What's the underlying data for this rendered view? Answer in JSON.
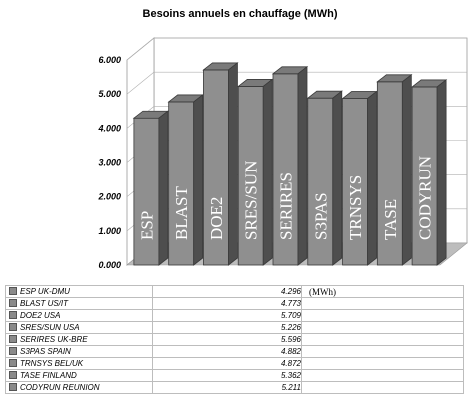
{
  "chart_data": {
    "type": "bar",
    "title": "Besoins annuels en chauffage (MWh)",
    "categories": [
      "ESP",
      "BLAST",
      "DOE2",
      "SRES/SUN",
      "SERIRES",
      "S3PAS",
      "TRNSYS",
      "TASE",
      "CODYRUN"
    ],
    "values": [
      4.296,
      4.773,
      5.709,
      5.226,
      5.596,
      4.882,
      4.872,
      5.362,
      5.211
    ],
    "ylim": [
      0,
      6
    ],
    "yticks": [
      "0.000",
      "1.000",
      "2.000",
      "3.000",
      "4.000",
      "5.000",
      "6.000"
    ],
    "grid": true,
    "bar_color": "#8f8f8f",
    "table": {
      "rows": [
        {
          "label": "ESP UK-DMU",
          "value": "4.296"
        },
        {
          "label": "BLAST US/IT",
          "value": "4.773"
        },
        {
          "label": "DOE2 USA",
          "value": "5.709"
        },
        {
          "label": "SRES/SUN USA",
          "value": "5.226"
        },
        {
          "label": "SERIRES UK-BRE",
          "value": "5.596"
        },
        {
          "label": "S3PAS SPAIN",
          "value": "4.882"
        },
        {
          "label": "TRNSYS BEL/UK",
          "value": "4.872"
        },
        {
          "label": "TASE FINLAND",
          "value": "5.362"
        },
        {
          "label": "CODYRUN REUNION",
          "value": "5.211"
        }
      ],
      "unit": "(MWh)"
    }
  }
}
